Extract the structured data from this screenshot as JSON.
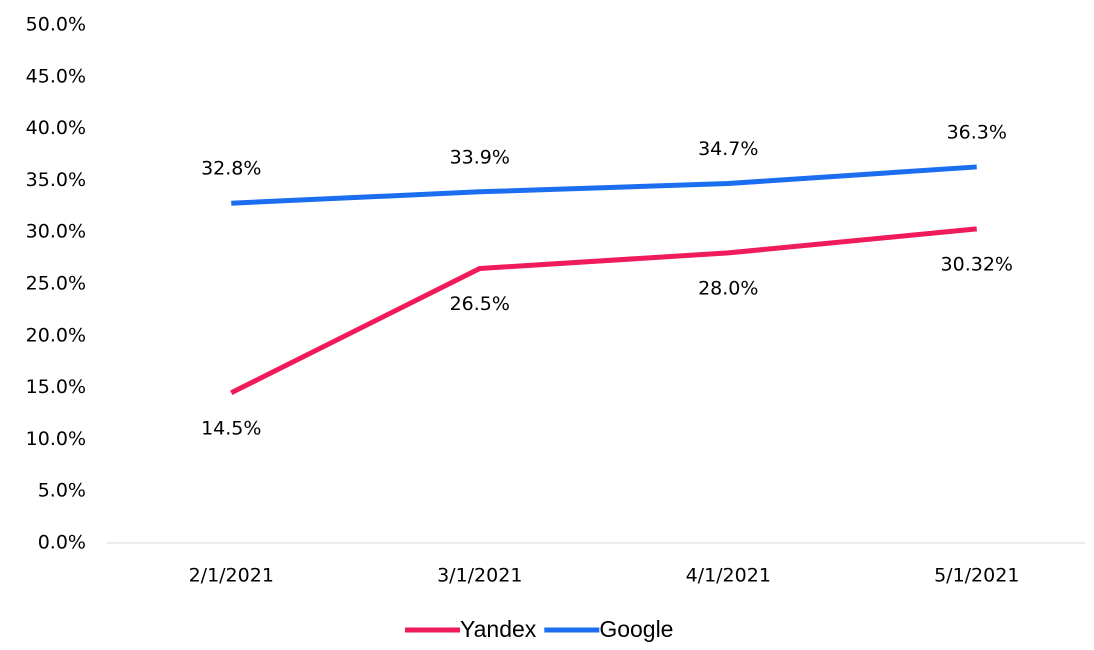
{
  "chart_data": {
    "type": "line",
    "categories": [
      "2/1/2021",
      "3/1/2021",
      "4/1/2021",
      "5/1/2021"
    ],
    "series": [
      {
        "name": "Yandex",
        "color": "#ef1b5b",
        "values": [
          14.5,
          26.5,
          28.0,
          30.32
        ],
        "value_labels": [
          "14.5%",
          "26.5%",
          "28.0%",
          "30.32%"
        ]
      },
      {
        "name": "Google",
        "color": "#1b6ef0",
        "values": [
          32.8,
          33.9,
          34.7,
          36.3
        ],
        "value_labels": [
          "32.8%",
          "33.9%",
          "34.7%",
          "36.3%"
        ]
      }
    ],
    "ylim": [
      0,
      50
    ],
    "yticks": [
      {
        "value": 0,
        "label": "0.0%"
      },
      {
        "value": 5,
        "label": "5.0%"
      },
      {
        "value": 10,
        "label": "10.0%"
      },
      {
        "value": 15,
        "label": "15.0%"
      },
      {
        "value": 20,
        "label": "20.0%"
      },
      {
        "value": 25,
        "label": "25.0%"
      },
      {
        "value": 30,
        "label": "30.0%"
      },
      {
        "value": 35,
        "label": "35.0%"
      },
      {
        "value": 40,
        "label": "40.0%"
      },
      {
        "value": 45,
        "label": "45.0%"
      },
      {
        "value": 50,
        "label": "50.0%"
      }
    ],
    "grid": false,
    "legend": "bottom"
  }
}
